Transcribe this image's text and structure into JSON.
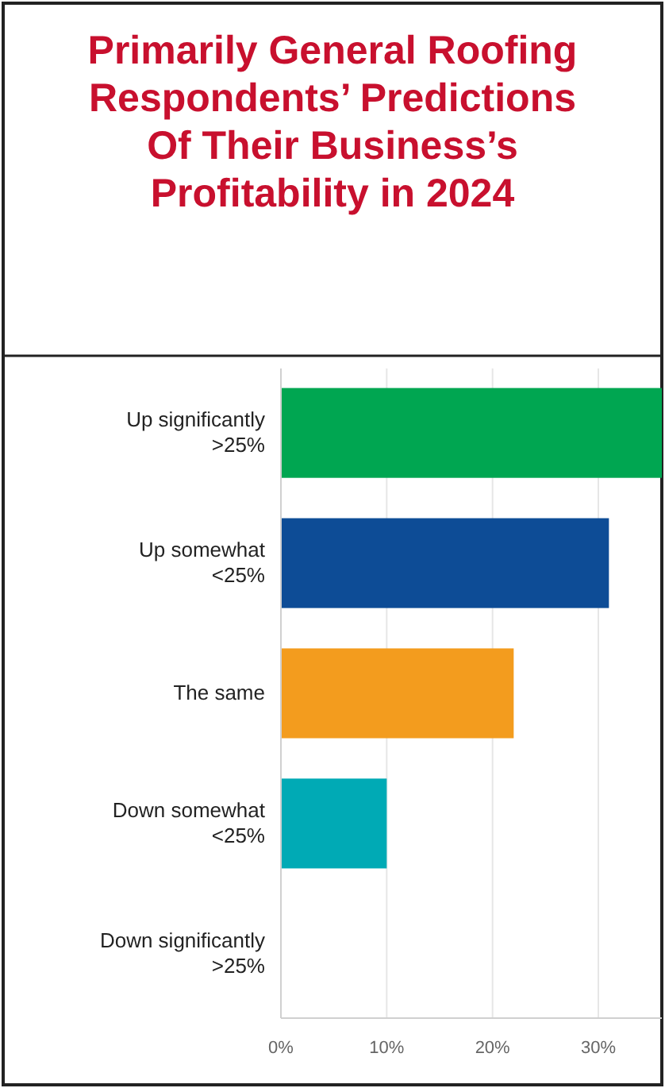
{
  "chart_data": {
    "type": "bar",
    "orientation": "horizontal",
    "title": "Primarily General Roofing Respondents’ Predictions Of Their Business’s Profitability in 2024",
    "categories": [
      "Up significantly >25%",
      "Up somewhat <25%",
      "The same",
      "Down somewhat <25%",
      "Down significantly >25%"
    ],
    "values": [
      36,
      31,
      22,
      10,
      0
    ],
    "colors": [
      "#00a651",
      "#0d4c96",
      "#f39c1e",
      "#00aab5",
      "#7f7f7f"
    ],
    "xlim": [
      0,
      36
    ],
    "xticks": [
      {
        "value": 0,
        "label": "0%"
      },
      {
        "value": 10,
        "label": "10%"
      },
      {
        "value": 20,
        "label": "20%"
      },
      {
        "value": 30,
        "label": "30%"
      }
    ],
    "grid": "x"
  }
}
